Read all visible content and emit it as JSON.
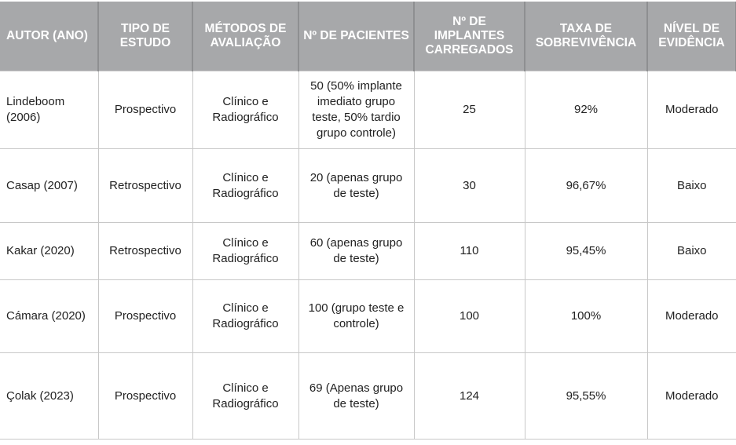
{
  "headers": [
    "AUTOR (ANO)",
    "TIPO DE ESTUDO",
    "MÉTODOS DE AVALIAÇÃO",
    "Nº DE PACIENTES",
    "Nº DE IMPLANTES CARREGADOS",
    "TAXA DE SOBREVIVÊNCIA",
    "NÍVEL DE EVIDÊNCIA"
  ],
  "rows": [
    [
      "Lindeboom (2006)",
      "Prospectivo",
      "Clínico e Radiográfico",
      "50 (50% implante imediato grupo teste, 50% tardio grupo controle)",
      "25",
      "92%",
      "Moderado"
    ],
    [
      "Casap (2007)",
      "Retrospectivo",
      "Clínico e Radiográfico",
      "20 (apenas grupo de teste)",
      "30",
      "96,67%",
      "Baixo"
    ],
    [
      "Kakar (2020)",
      "Retrospectivo",
      "Clínico e Radiográfico",
      "60 (apenas grupo de teste)",
      "110",
      "95,45%",
      "Baixo"
    ],
    [
      "Cámara (2020)",
      "Prospectivo",
      "Clínico e Radiográfico",
      "100 (grupo teste e controle)",
      "100",
      "100%",
      "Moderado"
    ],
    [
      "Çolak (2023)",
      "Prospectivo",
      "Clínico e Radiográfico",
      "69 (Apenas grupo de teste)",
      "124",
      "95,55%",
      "Moderado"
    ]
  ]
}
